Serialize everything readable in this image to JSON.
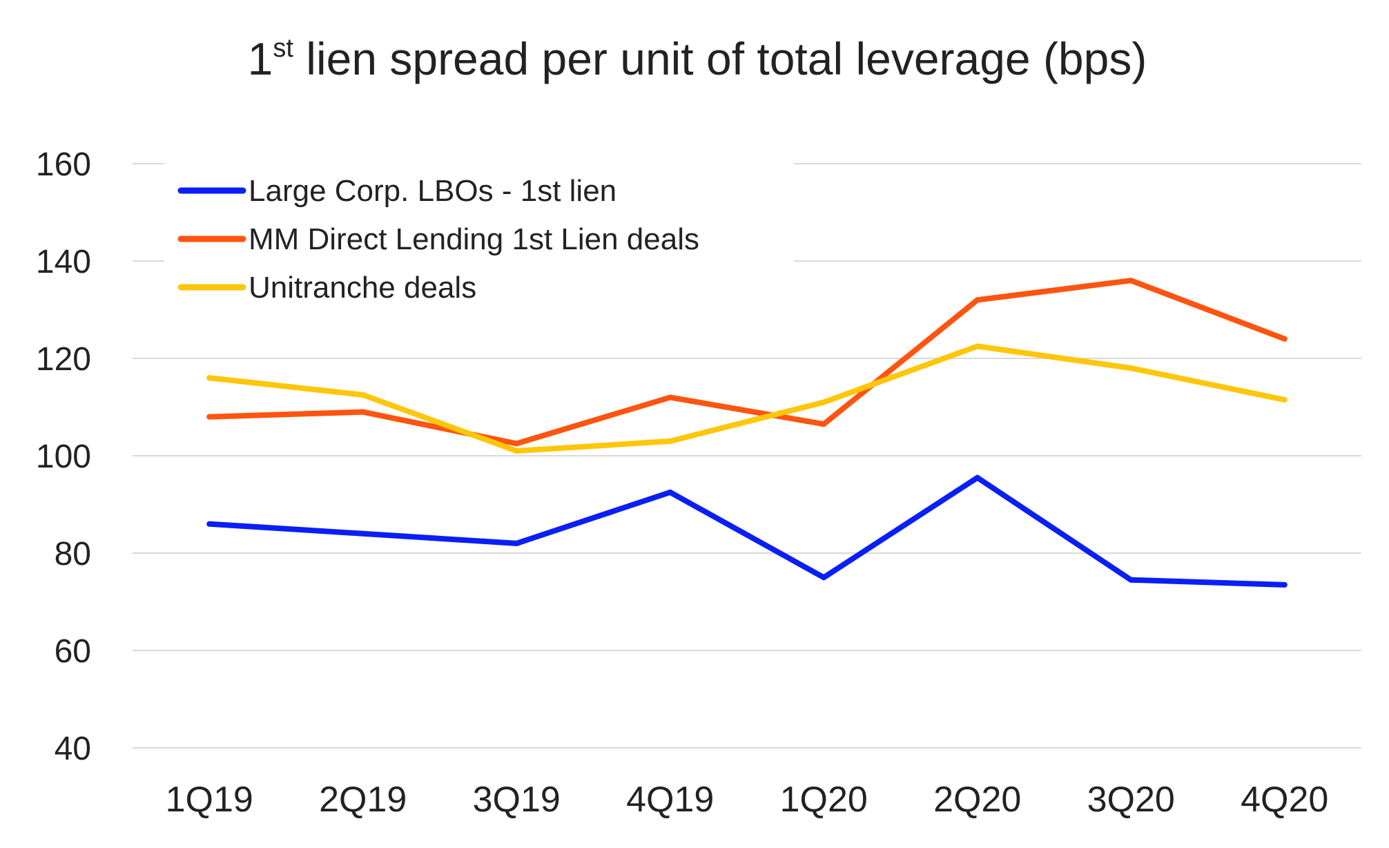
{
  "title": {
    "prefix": "1",
    "superscript": "st",
    "rest": " lien spread per unit of total leverage (bps)"
  },
  "chart_data": {
    "type": "line",
    "title": "1st lien spread per unit of total leverage (bps)",
    "xlabel": "",
    "ylabel": "",
    "categories": [
      "1Q19",
      "2Q19",
      "3Q19",
      "4Q19",
      "1Q20",
      "2Q20",
      "3Q20",
      "4Q20"
    ],
    "ylim": [
      40,
      160
    ],
    "yticks": [
      "160",
      "140",
      "120",
      "100",
      "80",
      "60",
      "40"
    ],
    "grid": true,
    "legend_position": "top-left",
    "series": [
      {
        "name": "Large Corp. LBOs - 1st lien",
        "color": "#0a1ff5",
        "values": [
          86,
          84,
          82,
          92.5,
          75,
          95.5,
          74.5,
          73.5
        ]
      },
      {
        "name": "MM Direct Lending 1st Lien deals",
        "color": "#ff5410",
        "values": [
          108,
          109,
          102.5,
          112,
          106.5,
          132,
          136,
          124
        ]
      },
      {
        "name": "Unitranche deals",
        "color": "#ffc60a",
        "values": [
          116,
          112.5,
          101,
          103,
          111,
          122.5,
          118,
          111.5
        ]
      }
    ]
  }
}
